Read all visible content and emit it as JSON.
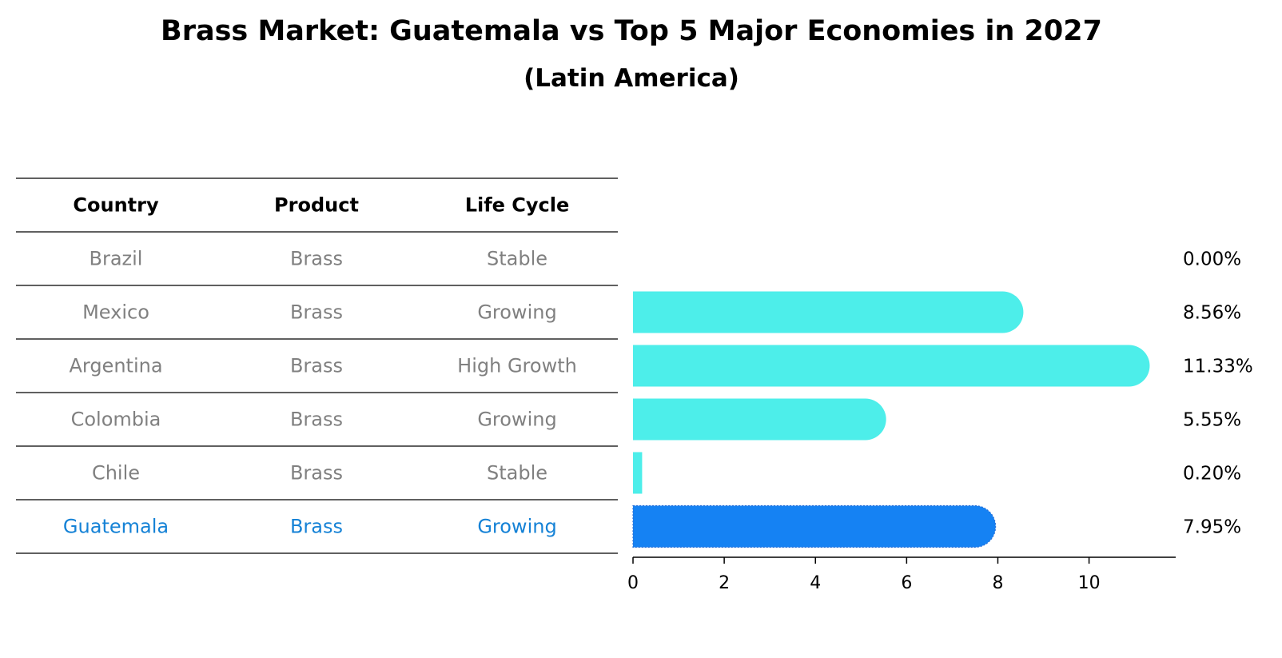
{
  "title": "Brass Market: Guatemala vs Top 5 Major Economies in 2027",
  "subtitle": "(Latin America)",
  "colors": {
    "bar": "#4deeea",
    "highlight_bar": "#1582f3",
    "highlight_text": "#1582d6",
    "row_text": "#808080"
  },
  "table": {
    "headers": [
      "Country",
      "Product",
      "Life Cycle"
    ],
    "rows": [
      {
        "country": "Brazil",
        "product": "Brass",
        "life_cycle": "Stable",
        "highlight": false
      },
      {
        "country": "Mexico",
        "product": "Brass",
        "life_cycle": "Growing",
        "highlight": false
      },
      {
        "country": "Argentina",
        "product": "Brass",
        "life_cycle": "High Growth",
        "highlight": false
      },
      {
        "country": "Colombia",
        "product": "Brass",
        "life_cycle": "Growing",
        "highlight": false
      },
      {
        "country": "Chile",
        "product": "Brass",
        "life_cycle": "Stable",
        "highlight": false
      },
      {
        "country": "Guatemala",
        "product": "Brass",
        "life_cycle": "Growing",
        "highlight": true
      }
    ]
  },
  "chart_data": {
    "type": "bar",
    "orientation": "horizontal",
    "title": "Brass Market: Guatemala vs Top 5 Major Economies in 2027",
    "subtitle": "(Latin America)",
    "categories": [
      "Brazil",
      "Mexico",
      "Argentina",
      "Colombia",
      "Chile",
      "Guatemala"
    ],
    "values": [
      0.0,
      8.56,
      11.33,
      5.55,
      0.2,
      7.95
    ],
    "value_labels": [
      "0.00%",
      "8.56%",
      "11.33%",
      "5.55%",
      "0.20%",
      "7.95%"
    ],
    "highlight_category": "Guatemala",
    "xlim": [
      0,
      11.9
    ],
    "xticks": [
      0,
      2,
      4,
      6,
      8,
      10
    ],
    "xlabel": "",
    "ylabel": ""
  }
}
